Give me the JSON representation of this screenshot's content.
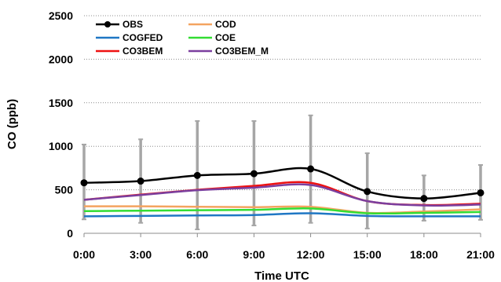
{
  "chart_data": {
    "type": "line",
    "xlabel": "Time UTC",
    "ylabel": "CO (ppb)",
    "x_ticks": [
      "0:00",
      "3:00",
      "6:00",
      "9:00",
      "12:00",
      "15:00",
      "18:00",
      "21:00"
    ],
    "y_ticks": [
      "0",
      "500",
      "1000",
      "1500",
      "2000",
      "2500"
    ],
    "ylim": [
      0,
      2500
    ],
    "grid": "horizontal dotted",
    "legend": "top-left, two columns",
    "series": [
      {
        "name": "OBS",
        "color": "#000000",
        "marker": "circle",
        "values": [
          580,
          600,
          665,
          685,
          740,
          480,
          400,
          465
        ],
        "error_low": [
          160,
          120,
          45,
          90,
          120,
          55,
          145,
          155
        ],
        "error_high": [
          1020,
          1080,
          1290,
          1290,
          1355,
          920,
          665,
          785
        ]
      },
      {
        "name": "COD",
        "color": "#f4a460",
        "values": [
          310,
          310,
          305,
          300,
          305,
          235,
          250,
          275
        ]
      },
      {
        "name": "COGFED",
        "color": "#1f77c4",
        "values": [
          195,
          200,
          205,
          210,
          230,
          200,
          195,
          195
        ]
      },
      {
        "name": "COE",
        "color": "#33dd33",
        "values": [
          255,
          260,
          265,
          270,
          285,
          230,
          235,
          245
        ]
      },
      {
        "name": "CO3BEM",
        "color": "#ee1111",
        "values": [
          385,
          445,
          500,
          545,
          580,
          370,
          325,
          340
        ]
      },
      {
        "name": "CO3BEM_M",
        "color": "#7b3f9e",
        "values": [
          385,
          440,
          495,
          525,
          555,
          370,
          320,
          330
        ]
      }
    ]
  }
}
